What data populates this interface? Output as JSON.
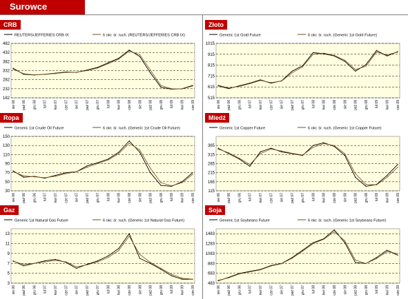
{
  "header": {
    "title": "Surowce"
  },
  "colors": {
    "header_bg": "#c00000",
    "plot_bg": "#fffee0",
    "series_main": "#000000",
    "series_ma": "#7a4a1a",
    "grid": "#000000"
  },
  "panels": [
    {
      "tab": "CRB",
      "legend": [
        "REUTERS/JEFFERIES CRB IX",
        "6 okr. śr. ruch. (REUTERS/JEFFERIES CRB IX)"
      ]
    },
    {
      "tab": "Złoto",
      "legend": [
        "Generic 1st Gold Future",
        "6 okr. śr. ruch. (Generic 1st Gold Future)"
      ]
    },
    {
      "tab": "Ropa",
      "legend": [
        "Generic 1st Crude Oil Future",
        "6 okr. śr. ruch. (Generic 1st Crude Oil Future)"
      ]
    },
    {
      "tab": "Miedź",
      "legend": [
        "Generic 1st Copper Future",
        "6 okr. śr. ruch. (Generic 1st Copper Future)"
      ]
    },
    {
      "tab": "Gaz",
      "legend": [
        "Generic 1st Natural Gas Future",
        "6 okr. śr. ruch. (Generic 1st Natural Gas Future)"
      ]
    },
    {
      "tab": "Soja",
      "legend": [
        "Generic 1st Soybeans Future",
        "6 okr. śr. ruch. (Generic 1st Soybeans Future)"
      ]
    }
  ],
  "chart_data": [
    {
      "type": "line",
      "x": [
        "sie 06",
        "paź 06",
        "gru 06",
        "lut 07",
        "kwi 07",
        "cze 07",
        "sie 07",
        "paź 07",
        "gru 07",
        "lut 08",
        "kwi 08",
        "cze 08",
        "sie 08",
        "paź 08",
        "gru 08",
        "lut 09",
        "kwi 09",
        "cze 09"
      ],
      "yticks": [
        182,
        232,
        282,
        332,
        382,
        432,
        482
      ],
      "ylim": [
        182,
        482
      ],
      "series": [
        {
          "name": "REUTERS/JEFFERIES CRB IX",
          "values": [
            345,
            312,
            308,
            312,
            318,
            324,
            322,
            335,
            350,
            375,
            400,
            445,
            410,
            320,
            240,
            230,
            232,
            250
          ]
        },
        {
          "name": "6 okr. śr. ruch. (REUTERS/JEFFERIES CRB IX)",
          "values": [
            340,
            315,
            309,
            311,
            316,
            322,
            323,
            332,
            346,
            370,
            395,
            440,
            420,
            335,
            250,
            232,
            231,
            247
          ]
        }
      ]
    },
    {
      "type": "line",
      "x": [
        "sie 06",
        "paź 06",
        "gru 06",
        "lut 07",
        "kwi 07",
        "cze 07",
        "sie 07",
        "paź 07",
        "gru 07",
        "lut 08",
        "kwi 08",
        "cze 08",
        "sie 08",
        "paź 08",
        "gru 08",
        "lut 09",
        "kwi 09",
        "cze 09"
      ],
      "yticks": [
        515,
        615,
        715,
        815,
        915,
        1015
      ],
      "ylim": [
        515,
        1015
      ],
      "series": [
        {
          "name": "Generic 1st Gold Future",
          "values": [
            625,
            600,
            625,
            650,
            680,
            650,
            670,
            760,
            810,
            930,
            920,
            900,
            850,
            760,
            820,
            950,
            900,
            940
          ]
        },
        {
          "name": "6 okr. śr. ruch. (Generic 1st Gold Future)",
          "values": [
            630,
            605,
            620,
            645,
            675,
            655,
            668,
            745,
            800,
            915,
            925,
            905,
            860,
            775,
            805,
            935,
            910,
            935
          ]
        }
      ]
    },
    {
      "type": "line",
      "x": [
        "sie 06",
        "paź 06",
        "gru 06",
        "lut 07",
        "kwi 07",
        "cze 07",
        "sie 07",
        "paź 07",
        "gru 07",
        "lut 08",
        "kwi 08",
        "cze 08",
        "sie 08",
        "paź 08",
        "gru 08",
        "lut 09",
        "kwi 09",
        "cze 09"
      ],
      "yticks": [
        30,
        50,
        70,
        90,
        110,
        130,
        150
      ],
      "ylim": [
        30,
        150
      ],
      "series": [
        {
          "name": "Generic 1st Crude Oil Future",
          "values": [
            74,
            60,
            62,
            58,
            64,
            70,
            72,
            85,
            92,
            100,
            115,
            140,
            115,
            70,
            42,
            40,
            50,
            70
          ]
        },
        {
          "name": "6 okr. śr. ruch. (Generic 1st Crude Oil Future)",
          "values": [
            72,
            63,
            61,
            59,
            62,
            68,
            72,
            82,
            90,
            98,
            112,
            135,
            120,
            80,
            48,
            41,
            48,
            66
          ]
        }
      ]
    },
    {
      "type": "line",
      "x": [
        "sie 06",
        "paź 06",
        "gru 06",
        "lut 07",
        "kwi 07",
        "cze 07",
        "sie 07",
        "paź 07",
        "gru 07",
        "lut 08",
        "kwi 08",
        "cze 08",
        "sie 08",
        "paź 08",
        "gru 08",
        "lut 09",
        "kwi 09",
        "cze 09"
      ],
      "yticks": [
        115,
        165,
        215,
        265,
        315,
        365
      ],
      "ylim": [
        115,
        415
      ],
      "series": [
        {
          "name": "Generic 1st Copper Future",
          "values": [
            350,
            320,
            290,
            250,
            330,
            350,
            330,
            320,
            310,
            365,
            380,
            360,
            310,
            190,
            140,
            150,
            200,
            260
          ]
        },
        {
          "name": "6 okr. śr. ruch. (Generic 1st Copper Future)",
          "values": [
            345,
            325,
            295,
            260,
            320,
            345,
            335,
            322,
            312,
            355,
            375,
            365,
            320,
            210,
            150,
            148,
            190,
            245
          ]
        }
      ]
    },
    {
      "type": "line",
      "x": [
        "sie 06",
        "paź 06",
        "gru 06",
        "lut 07",
        "kwi 07",
        "cze 07",
        "sie 07",
        "paź 07",
        "gru 07",
        "lut 08",
        "kwi 08",
        "cze 08",
        "sie 08",
        "paź 08",
        "gru 08",
        "lut 09",
        "kwi 09",
        "cze 09"
      ],
      "yticks": [
        3,
        5,
        7,
        9,
        11,
        13
      ],
      "ylim": [
        3,
        14
      ],
      "series": [
        {
          "name": "Generic 1st Natural Gas Future",
          "values": [
            7.5,
            6.5,
            7.0,
            7.5,
            7.8,
            7.2,
            6.0,
            6.8,
            7.5,
            8.5,
            10.0,
            13.0,
            8.0,
            7.0,
            5.8,
            4.5,
            3.8,
            3.8
          ]
        },
        {
          "name": "6 okr. śr. ruch. (Generic 1st Natural Gas Future)",
          "values": [
            7.4,
            6.8,
            7.0,
            7.3,
            7.6,
            7.3,
            6.3,
            6.7,
            7.3,
            8.2,
            9.6,
            12.5,
            8.8,
            7.2,
            6.0,
            4.8,
            4.0,
            3.8
          ]
        }
      ]
    },
    {
      "type": "line",
      "x": [
        "sie 06",
        "paź 06",
        "gru 06",
        "lut 07",
        "kwi 07",
        "cze 07",
        "sie 07",
        "paź 07",
        "gru 07",
        "lut 08",
        "kwi 08",
        "cze 08",
        "sie 08",
        "paź 08",
        "gru 08",
        "lut 09",
        "kwi 09",
        "cze 09"
      ],
      "yticks": [
        483,
        683,
        883,
        1083,
        1283,
        1483
      ],
      "ylim": [
        483,
        1583
      ],
      "series": [
        {
          "name": "Generic 1st Soybeans Future",
          "values": [
            530,
            600,
            680,
            720,
            760,
            840,
            880,
            1000,
            1150,
            1300,
            1380,
            1560,
            1300,
            900,
            880,
            1000,
            1150,
            1050
          ]
        },
        {
          "name": "6 okr. śr. ruch. (Generic 1st Soybeans Future)",
          "values": [
            540,
            590,
            670,
            712,
            752,
            830,
            875,
            985,
            1130,
            1280,
            1370,
            1520,
            1340,
            950,
            880,
            980,
            1120,
            1080
          ]
        }
      ]
    }
  ]
}
